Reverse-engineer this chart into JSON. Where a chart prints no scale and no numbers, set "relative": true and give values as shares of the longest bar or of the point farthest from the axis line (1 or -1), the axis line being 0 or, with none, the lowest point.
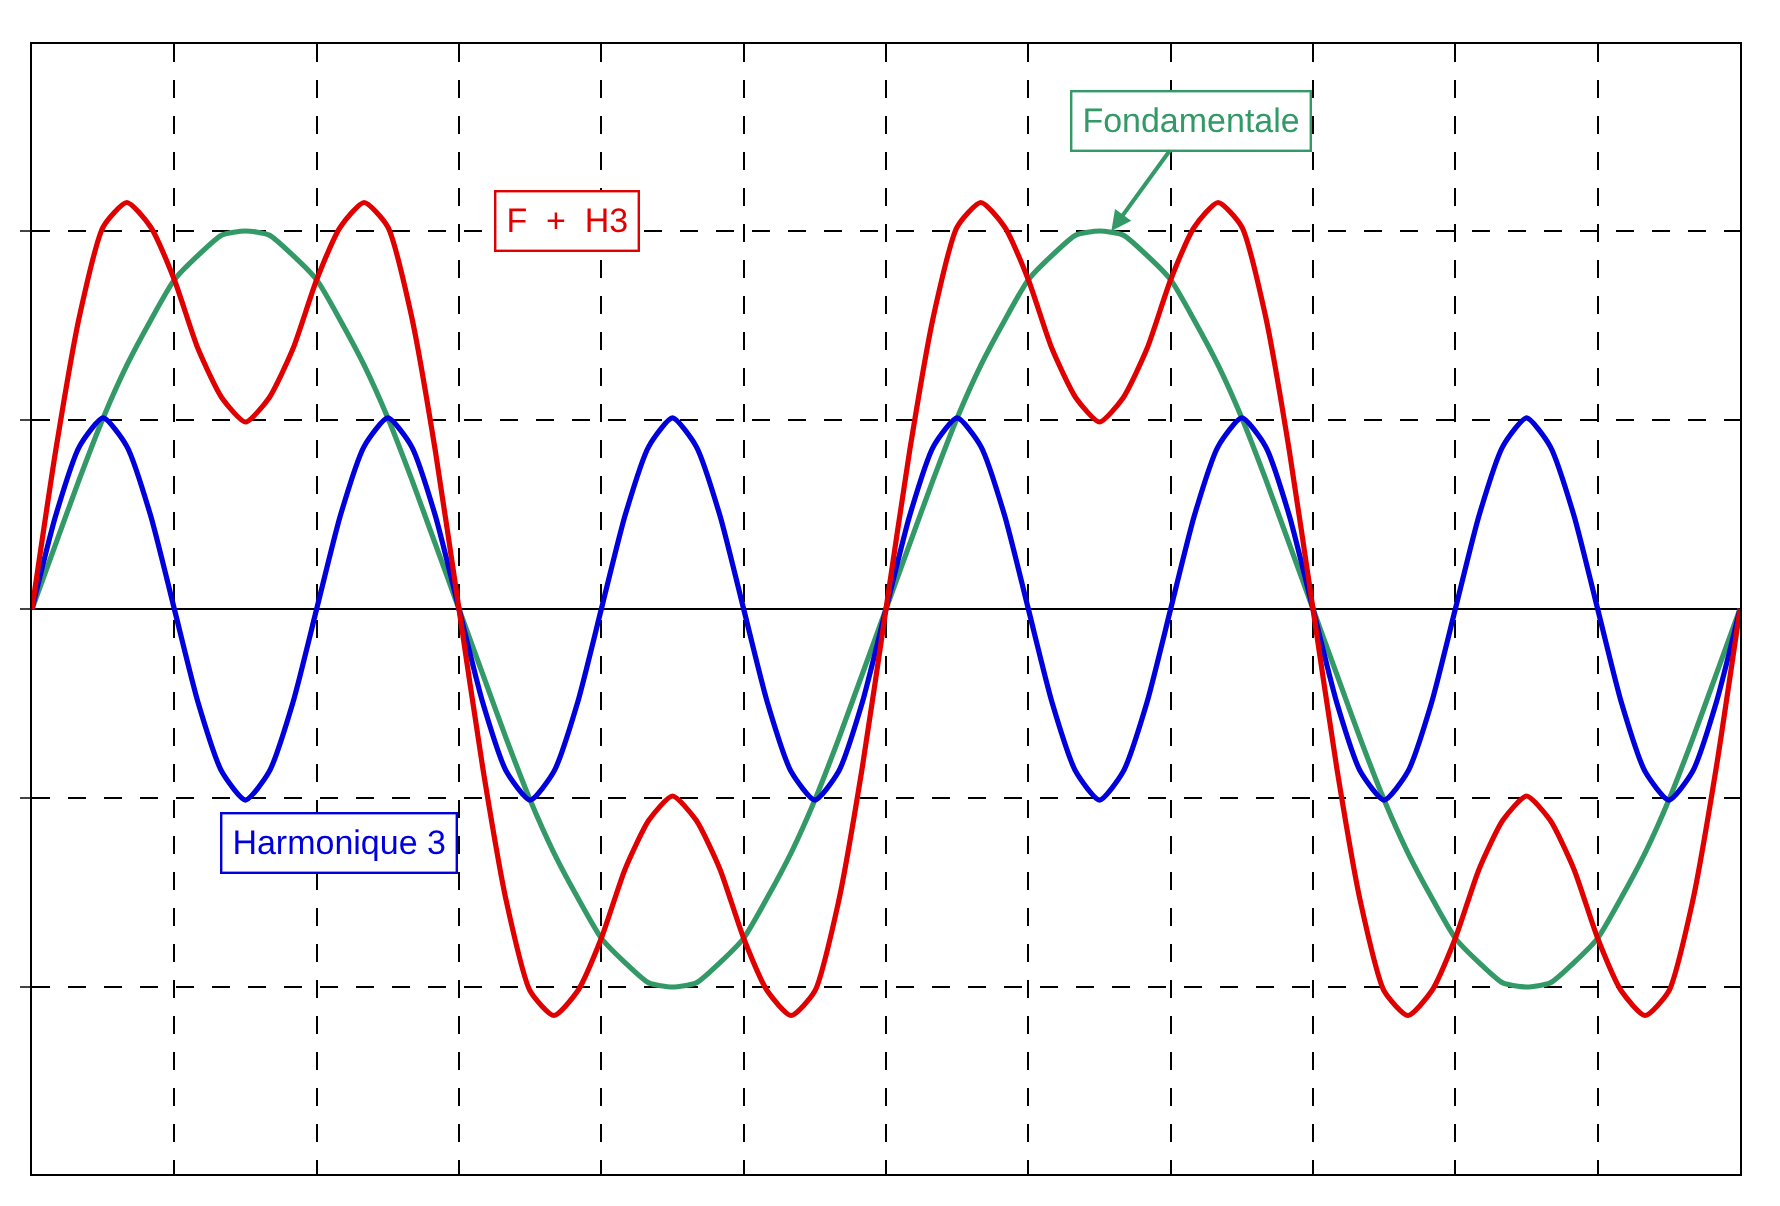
{
  "chart_data": {
    "type": "line",
    "relative": true,
    "grid": true,
    "legend": false,
    "marker": "none",
    "line_style": "solid",
    "categories": [
      null,
      null,
      null,
      null,
      null,
      null,
      null,
      null,
      null,
      null,
      null,
      null,
      null,
      null,
      null,
      null,
      null,
      null,
      null,
      null,
      null,
      null,
      null,
      null,
      null,
      null,
      null,
      null,
      null,
      null,
      null,
      null,
      null,
      null,
      null,
      null,
      null,
      null,
      null,
      null,
      null,
      null,
      null,
      null,
      null,
      null,
      null,
      null,
      null,
      null,
      null,
      null,
      null,
      null,
      null,
      null,
      null,
      null,
      null,
      null,
      null,
      null,
      null,
      null,
      null,
      null,
      null,
      null,
      null,
      null,
      null,
      null,
      null
    ],
    "series": [
      {
        "name": "Fondamentale",
        "color": "#339966",
        "values": [
          0,
          0.16,
          0.32,
          0.47,
          0.6,
          0.71,
          0.81,
          0.87,
          0.92,
          0.93,
          0.92,
          0.87,
          0.81,
          0.71,
          0.6,
          0.47,
          0.32,
          0.16,
          0,
          -0.16,
          -0.32,
          -0.47,
          -0.6,
          -0.71,
          -0.81,
          -0.87,
          -0.92,
          -0.93,
          -0.92,
          -0.87,
          -0.81,
          -0.71,
          -0.6,
          -0.47,
          -0.32,
          -0.16,
          0,
          0.16,
          0.32,
          0.47,
          0.6,
          0.71,
          0.81,
          0.87,
          0.92,
          0.93,
          0.92,
          0.87,
          0.81,
          0.71,
          0.6,
          0.47,
          0.32,
          0.16,
          0,
          -0.16,
          -0.32,
          -0.47,
          -0.6,
          -0.71,
          -0.81,
          -0.87,
          -0.92,
          -0.93,
          -0.92,
          -0.87,
          -0.81,
          -0.71,
          -0.6,
          -0.47,
          -0.32,
          -0.16,
          0
        ]
      },
      {
        "name": "Harmonique 3",
        "color": "#0000dd",
        "values": [
          0,
          0.23,
          0.4,
          0.47,
          0.4,
          0.23,
          0,
          -0.23,
          -0.4,
          -0.47,
          -0.4,
          -0.23,
          0,
          0.23,
          0.4,
          0.47,
          0.4,
          0.23,
          0,
          -0.23,
          -0.4,
          -0.47,
          -0.4,
          -0.23,
          0,
          0.23,
          0.4,
          0.47,
          0.4,
          0.23,
          0,
          -0.23,
          -0.4,
          -0.47,
          -0.4,
          -0.23,
          0,
          0.23,
          0.4,
          0.47,
          0.4,
          0.23,
          0,
          -0.23,
          -0.4,
          -0.47,
          -0.4,
          -0.23,
          0,
          0.23,
          0.4,
          0.47,
          0.4,
          0.23,
          0,
          -0.23,
          -0.4,
          -0.47,
          -0.4,
          -0.23,
          0,
          0.23,
          0.4,
          0.47,
          0.4,
          0.23,
          0,
          -0.23,
          -0.4,
          -0.47,
          -0.4,
          -0.23,
          0
        ]
      },
      {
        "name": "F  +  H3",
        "color": "#e00000",
        "values": [
          0,
          0.39,
          0.72,
          0.94,
          1,
          0.94,
          0.81,
          0.64,
          0.52,
          0.46,
          0.52,
          0.64,
          0.81,
          0.94,
          1,
          0.94,
          0.72,
          0.39,
          0,
          -0.39,
          -0.72,
          -0.94,
          -1,
          -0.94,
          -0.81,
          -0.64,
          -0.52,
          -0.46,
          -0.52,
          -0.64,
          -0.81,
          -0.94,
          -1,
          -0.94,
          -0.72,
          -0.39,
          0,
          0.39,
          0.72,
          0.94,
          1,
          0.94,
          0.81,
          0.64,
          0.52,
          0.46,
          0.52,
          0.64,
          0.81,
          0.94,
          1,
          0.94,
          0.72,
          0.39,
          0,
          -0.39,
          -0.72,
          -0.94,
          -1,
          -0.94,
          -0.81,
          -0.64,
          -0.52,
          -0.46,
          -0.52,
          -0.64,
          -0.81,
          -0.94,
          -1,
          -0.94,
          -0.72,
          -0.39,
          0
        ]
      }
    ]
  }
}
